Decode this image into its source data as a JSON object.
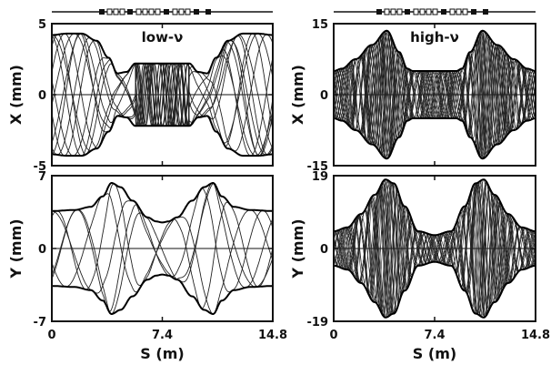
{
  "chart_data": [
    {
      "type": "line",
      "panel": "top-left",
      "title": "low-ν",
      "xlabel": "",
      "ylabel": "X (mm)",
      "xlim": [
        0,
        14.8
      ],
      "ylim": [
        -5,
        5
      ],
      "x_ticks": [
        "0",
        "7.4",
        "14.8"
      ],
      "y_ticks": [
        "5",
        "0",
        "-5"
      ],
      "envelope": {
        "s": [
          0,
          1.0,
          2.0,
          3.0,
          3.8,
          4.4,
          5.0,
          5.6,
          6.6,
          7.4,
          8.2,
          9.2,
          9.8,
          10.4,
          11.0,
          11.8,
          12.8,
          13.8,
          14.8
        ],
        "amp": [
          4.2,
          4.3,
          4.3,
          3.8,
          2.6,
          1.5,
          1.6,
          2.2,
          2.2,
          2.2,
          2.2,
          2.2,
          1.6,
          1.5,
          2.6,
          3.8,
          4.3,
          4.3,
          4.2
        ]
      },
      "trajectory_count": 10,
      "dense_region_s": [
        5.6,
        9.2
      ]
    },
    {
      "type": "line",
      "panel": "top-right",
      "title": "high-ν",
      "xlabel": "",
      "ylabel": "X (mm)",
      "xlim": [
        0,
        14.8
      ],
      "ylim": [
        -15,
        15
      ],
      "x_ticks": [
        "0",
        "7.4",
        "14.8"
      ],
      "y_ticks": [
        "15",
        "0",
        "-15"
      ],
      "envelope": {
        "s": [
          0,
          0.6,
          1.6,
          2.8,
          3.9,
          4.8,
          5.4,
          5.8,
          6.6,
          7.4,
          8.2,
          9.0,
          9.4,
          10.0,
          10.9,
          12.0,
          13.2,
          14.2,
          14.8
        ],
        "amp": [
          5.0,
          5.5,
          7.5,
          10.5,
          13.5,
          9.0,
          5.5,
          5.0,
          5.0,
          5.0,
          5.0,
          5.0,
          5.5,
          9.0,
          13.5,
          10.5,
          7.5,
          5.5,
          5.0
        ]
      },
      "trajectory_count": 26,
      "dense_region_s": [
        0,
        14.8
      ]
    },
    {
      "type": "line",
      "panel": "bottom-left",
      "title": "",
      "xlabel": "S (m)",
      "ylabel": "Y (mm)",
      "xlim": [
        0,
        14.8
      ],
      "ylim": [
        -7,
        7
      ],
      "x_ticks": [
        "0",
        "7.4",
        "14.8"
      ],
      "y_ticks": [
        "7",
        "0",
        "-7"
      ],
      "envelope": {
        "s": [
          0,
          1.5,
          2.6,
          3.4,
          4.0,
          4.6,
          5.4,
          6.4,
          7.0,
          7.4,
          7.8,
          8.4,
          9.4,
          10.2,
          10.8,
          11.4,
          12.2,
          13.3,
          14.8
        ],
        "amp": [
          3.6,
          3.7,
          4.0,
          5.0,
          6.3,
          5.9,
          4.6,
          3.0,
          2.6,
          2.5,
          2.6,
          3.0,
          4.6,
          5.9,
          6.3,
          5.0,
          4.0,
          3.7,
          3.6
        ]
      },
      "trajectory_count": 5,
      "dense_region_s": []
    },
    {
      "type": "line",
      "panel": "bottom-right",
      "title": "",
      "xlabel": "S (m)",
      "ylabel": "Y (mm)",
      "xlim": [
        0,
        14.8
      ],
      "ylim": [
        -19,
        19
      ],
      "x_ticks": [
        "0",
        "7.4",
        "14.8"
      ],
      "y_ticks": [
        "19",
        "0",
        "-19"
      ],
      "envelope": {
        "s": [
          0,
          1.0,
          2.0,
          3.0,
          3.8,
          4.4,
          5.2,
          6.2,
          7.4,
          8.6,
          9.6,
          10.4,
          11.0,
          11.8,
          12.8,
          13.8,
          14.8
        ],
        "amp": [
          4.5,
          5.5,
          9.0,
          14.0,
          18.0,
          17.0,
          11.0,
          4.5,
          3.5,
          4.5,
          11.0,
          17.0,
          18.0,
          14.0,
          9.0,
          5.5,
          4.5
        ]
      },
      "trajectory_count": 22,
      "dense_region_s": [
        0,
        14.8
      ]
    }
  ]
}
